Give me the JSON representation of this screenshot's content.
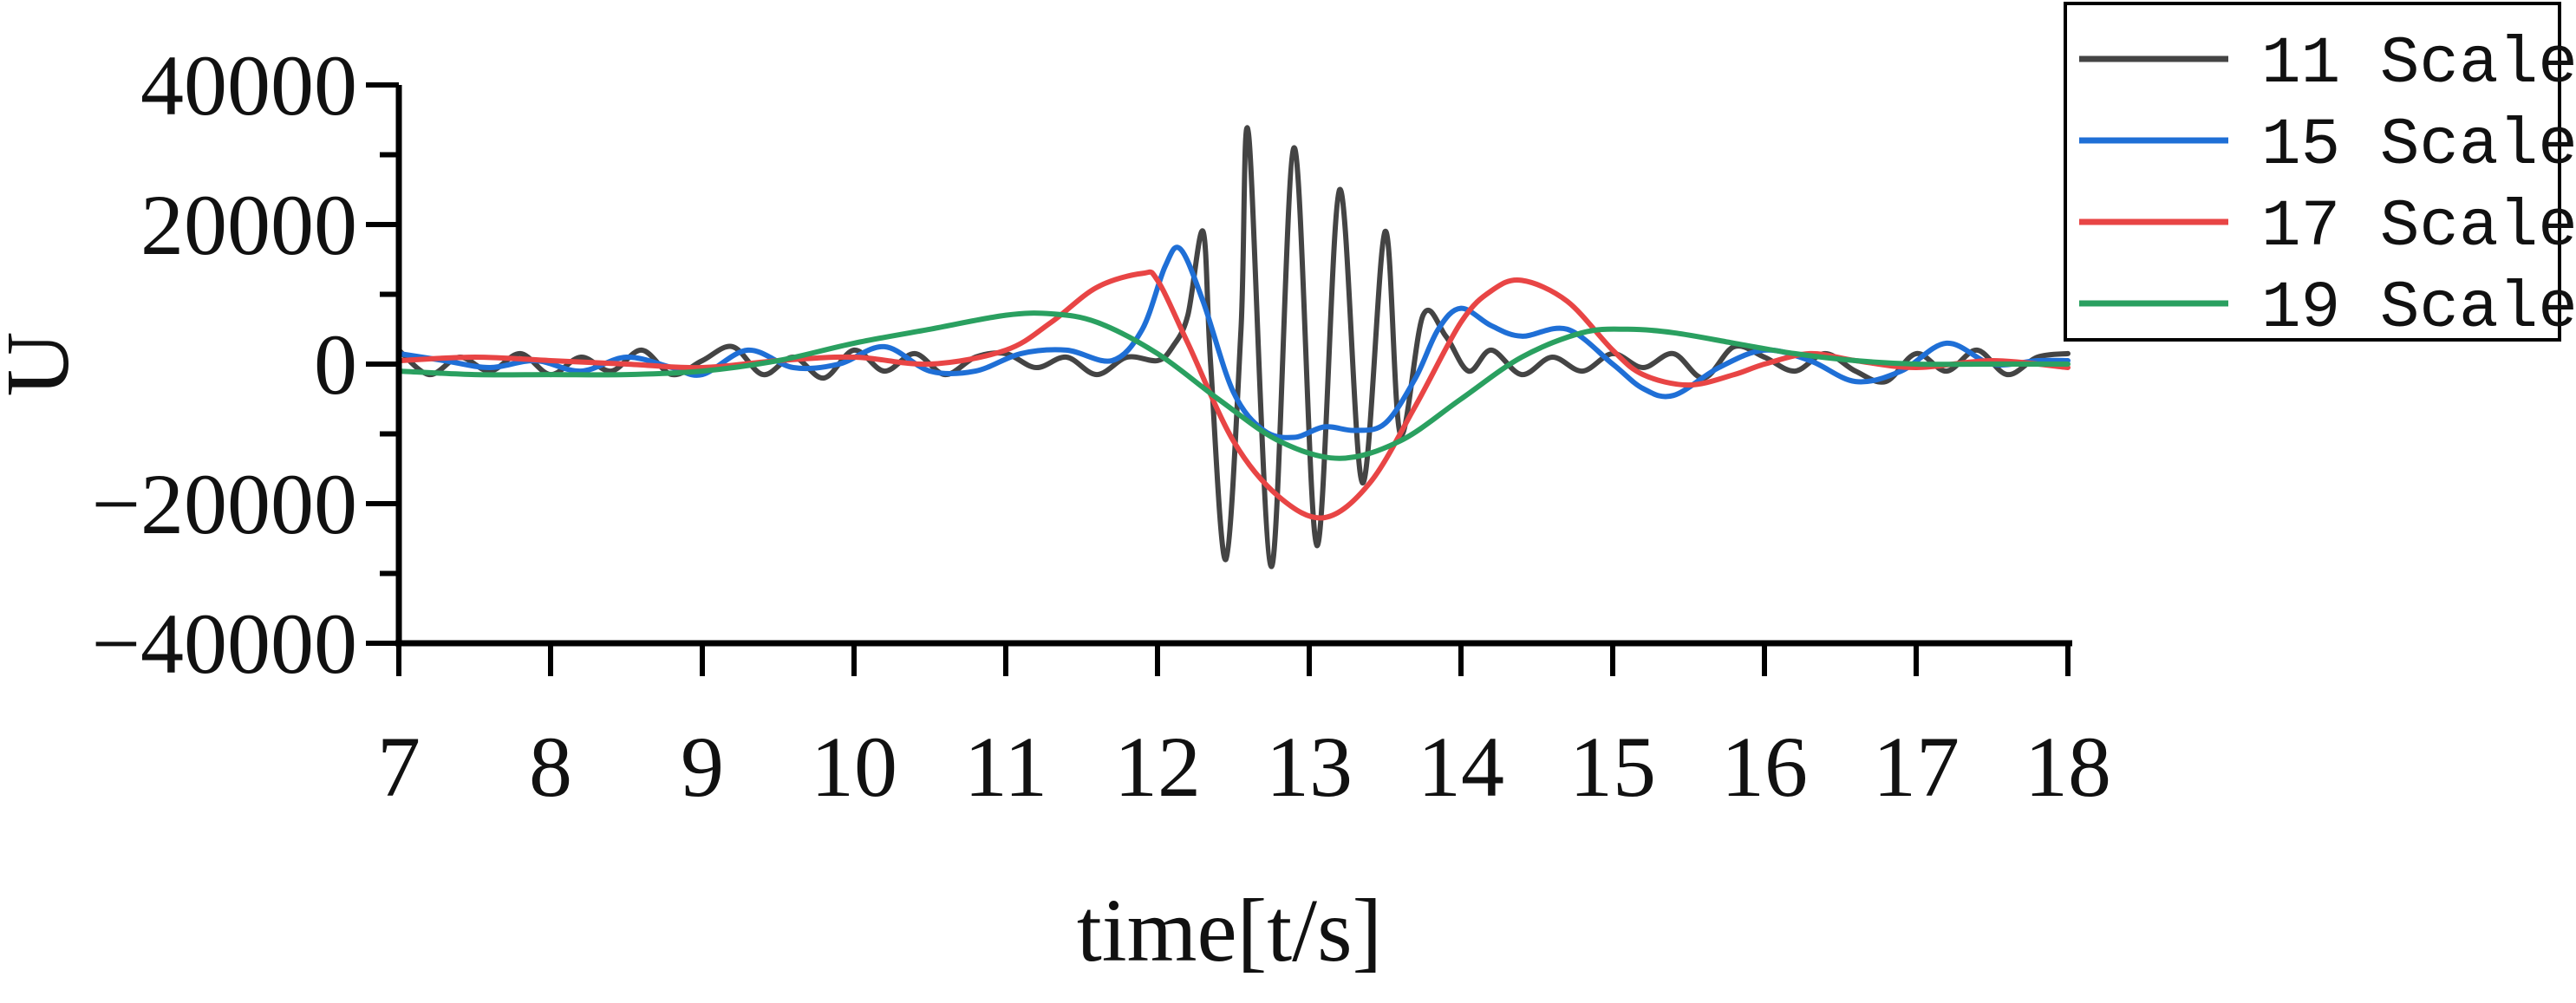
{
  "chart_data": {
    "type": "line",
    "xlabel": "time[t/s]",
    "ylabel": "U",
    "xlim": [
      7,
      18
    ],
    "ylim": [
      -40000,
      40000
    ],
    "xticks": [
      7,
      8,
      9,
      10,
      11,
      12,
      13,
      14,
      15,
      16,
      17,
      18
    ],
    "xtick_labels": [
      "7",
      "8",
      "9",
      "10",
      "11",
      "12",
      "13",
      "14",
      "15",
      "16",
      "17",
      "18"
    ],
    "yticks": [
      -40000,
      -20000,
      0,
      20000,
      40000
    ],
    "ytick_labels": [
      "−40000",
      "−20000",
      "0",
      "20000",
      "40000"
    ],
    "grid": false,
    "legend_position": "top-right",
    "series": [
      {
        "name": "11 Scale",
        "color": "#444444",
        "x": [
          7.0,
          7.2,
          7.4,
          7.6,
          7.8,
          8.0,
          8.2,
          8.4,
          8.6,
          8.8,
          9.0,
          9.2,
          9.4,
          9.6,
          9.8,
          10.0,
          10.2,
          10.4,
          10.6,
          10.8,
          11.0,
          11.2,
          11.4,
          11.6,
          11.8,
          12.0,
          12.1,
          12.2,
          12.3,
          12.35,
          12.45,
          12.55,
          12.6,
          12.75,
          12.9,
          13.05,
          13.2,
          13.35,
          13.5,
          13.6,
          13.75,
          13.9,
          14.05,
          14.2,
          14.4,
          14.6,
          14.8,
          15.0,
          15.2,
          15.4,
          15.6,
          15.8,
          16.0,
          16.2,
          16.4,
          16.6,
          16.8,
          17.0,
          17.2,
          17.4,
          17.6,
          17.8,
          18.0
        ],
        "y": [
          2000,
          -1500,
          1000,
          -1000,
          1500,
          -1500,
          1000,
          -1000,
          2000,
          -1500,
          500,
          2500,
          -1500,
          1000,
          -2000,
          2000,
          -1000,
          1500,
          -1500,
          1000,
          1500,
          -500,
          1000,
          -1500,
          1000,
          500,
          2500,
          7000,
          19000,
          0,
          -28000,
          5000,
          33000,
          -29000,
          31000,
          -26000,
          25000,
          -17000,
          19000,
          -10000,
          7000,
          4000,
          -1000,
          2000,
          -1500,
          1000,
          -1000,
          1500,
          -500,
          1500,
          -2000,
          2500,
          1000,
          -1000,
          1500,
          -1000,
          -2500,
          1500,
          -1000,
          2000,
          -1500,
          1000,
          1500
        ]
      },
      {
        "name": "15 Scale",
        "color": "#1f6fd6",
        "x": [
          7.0,
          7.3,
          7.6,
          7.9,
          8.2,
          8.5,
          8.8,
          9.0,
          9.3,
          9.6,
          9.9,
          10.2,
          10.5,
          10.8,
          11.1,
          11.4,
          11.7,
          11.9,
          12.05,
          12.15,
          12.3,
          12.5,
          12.7,
          12.9,
          13.1,
          13.3,
          13.5,
          13.7,
          13.85,
          14.0,
          14.2,
          14.4,
          14.7,
          15.0,
          15.2,
          15.4,
          15.7,
          16.0,
          16.3,
          16.6,
          16.9,
          17.2,
          17.5,
          17.8,
          18.0
        ],
        "y": [
          1500,
          500,
          -500,
          500,
          -1000,
          1000,
          -500,
          -1500,
          2000,
          -500,
          0,
          2500,
          -1000,
          -1000,
          1500,
          2000,
          500,
          5000,
          14000,
          16500,
          9000,
          -4000,
          -9500,
          -10500,
          -9000,
          -9500,
          -8500,
          -2000,
          5000,
          8000,
          5500,
          4000,
          5000,
          0,
          -3500,
          -4500,
          -500,
          2000,
          500,
          -2500,
          -1000,
          3000,
          0,
          500,
          500
        ]
      },
      {
        "name": "17 Scale",
        "color": "#e84545",
        "x": [
          7.0,
          7.5,
          8.0,
          8.5,
          9.0,
          9.5,
          10.0,
          10.5,
          11.0,
          11.3,
          11.6,
          11.9,
          12.0,
          12.2,
          12.5,
          12.8,
          13.1,
          13.4,
          13.7,
          14.0,
          14.2,
          14.4,
          14.7,
          15.0,
          15.2,
          15.5,
          15.8,
          16.0,
          16.3,
          16.6,
          17.0,
          17.5,
          18.0
        ],
        "y": [
          500,
          1000,
          500,
          0,
          -500,
          500,
          1000,
          0,
          2000,
          6000,
          11000,
          13000,
          12000,
          3000,
          -11000,
          -19000,
          -22000,
          -17000,
          -6000,
          6000,
          10500,
          12000,
          9000,
          2000,
          -1500,
          -3000,
          -1500,
          0,
          1500,
          500,
          -500,
          500,
          -500
        ]
      },
      {
        "name": "19 Scale",
        "color": "#2aa060",
        "x": [
          7.0,
          7.5,
          8.0,
          8.5,
          9.0,
          9.5,
          10.0,
          10.5,
          11.0,
          11.3,
          11.6,
          12.0,
          12.4,
          12.8,
          13.2,
          13.6,
          14.0,
          14.4,
          14.8,
          15.1,
          15.4,
          15.8,
          16.2,
          16.6,
          17.0,
          17.5,
          18.0
        ],
        "y": [
          -1000,
          -1500,
          -1500,
          -1500,
          -1000,
          500,
          3000,
          5000,
          7000,
          7200,
          6000,
          1500,
          -5000,
          -11000,
          -13500,
          -11000,
          -5000,
          1000,
          4500,
          5000,
          4500,
          3000,
          1500,
          500,
          0,
          0,
          0
        ]
      }
    ]
  }
}
